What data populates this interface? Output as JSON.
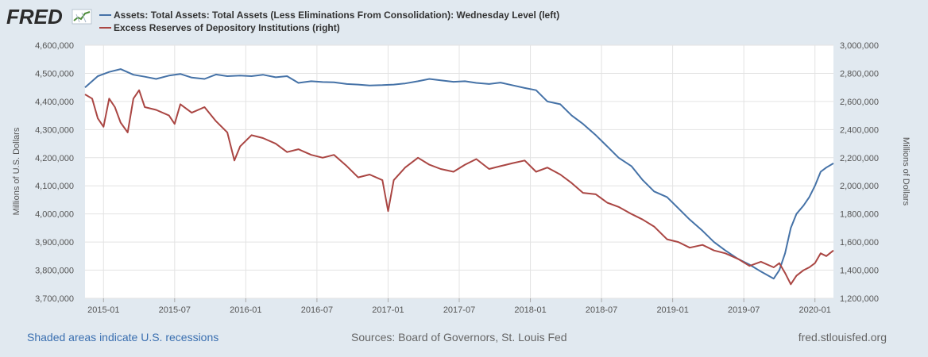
{
  "logo": {
    "text": "FRED"
  },
  "footer": {
    "left": "Shaded areas indicate U.S. recessions",
    "center": "Sources: Board of Governors, St. Louis Fed",
    "right": "fred.stlouisfed.org"
  },
  "chart_data": {
    "type": "line",
    "series": [
      {
        "name": "Assets: Total Assets: Total Assets (Less Eliminations From Consolidation): Wednesday Level (left)",
        "axis": "left",
        "color": "#4572a7",
        "x": [
          2014.87,
          2014.96,
          2015.04,
          2015.12,
          2015.21,
          2015.29,
          2015.37,
          2015.46,
          2015.54,
          2015.62,
          2015.71,
          2015.79,
          2015.87,
          2015.96,
          2016.04,
          2016.12,
          2016.21,
          2016.29,
          2016.37,
          2016.46,
          2016.54,
          2016.62,
          2016.71,
          2016.79,
          2016.87,
          2016.96,
          2017.04,
          2017.12,
          2017.21,
          2017.29,
          2017.37,
          2017.46,
          2017.54,
          2017.62,
          2017.71,
          2017.79,
          2017.87,
          2017.96,
          2018.04,
          2018.12,
          2018.21,
          2018.29,
          2018.37,
          2018.46,
          2018.54,
          2018.62,
          2018.71,
          2018.79,
          2018.87,
          2018.96,
          2019.04,
          2019.12,
          2019.21,
          2019.29,
          2019.37,
          2019.46,
          2019.54,
          2019.62,
          2019.71,
          2019.75,
          2019.79,
          2019.83,
          2019.87,
          2019.92,
          2019.96,
          2020.0,
          2020.04,
          2020.08,
          2020.13
        ],
        "values": [
          4450000,
          4490000,
          4505000,
          4515000,
          4495000,
          4488000,
          4480000,
          4492000,
          4498000,
          4485000,
          4480000,
          4496000,
          4490000,
          4492000,
          4490000,
          4495000,
          4486000,
          4490000,
          4466000,
          4472000,
          4469000,
          4468000,
          4462000,
          4460000,
          4457000,
          4458000,
          4460000,
          4464000,
          4472000,
          4480000,
          4475000,
          4470000,
          4472000,
          4466000,
          4462000,
          4467000,
          4458000,
          4448000,
          4440000,
          4400000,
          4390000,
          4350000,
          4320000,
          4280000,
          4240000,
          4200000,
          4170000,
          4120000,
          4080000,
          4060000,
          4020000,
          3980000,
          3940000,
          3900000,
          3870000,
          3840000,
          3820000,
          3795000,
          3770000,
          3800000,
          3860000,
          3950000,
          4000000,
          4030000,
          4060000,
          4100000,
          4150000,
          4165000,
          4180000
        ]
      },
      {
        "name": "Excess Reserves of Depository Institutions (right)",
        "axis": "right",
        "color": "#aa4643",
        "x": [
          2014.87,
          2014.92,
          2014.96,
          2015.0,
          2015.04,
          2015.08,
          2015.12,
          2015.17,
          2015.21,
          2015.25,
          2015.29,
          2015.37,
          2015.46,
          2015.5,
          2015.54,
          2015.62,
          2015.71,
          2015.79,
          2015.87,
          2015.92,
          2015.96,
          2016.04,
          2016.12,
          2016.21,
          2016.29,
          2016.37,
          2016.46,
          2016.54,
          2016.62,
          2016.71,
          2016.79,
          2016.87,
          2016.96,
          2017.0,
          2017.04,
          2017.12,
          2017.21,
          2017.29,
          2017.37,
          2017.46,
          2017.54,
          2017.62,
          2017.71,
          2017.79,
          2017.87,
          2017.96,
          2018.04,
          2018.12,
          2018.21,
          2018.29,
          2018.37,
          2018.46,
          2018.54,
          2018.62,
          2018.71,
          2018.79,
          2018.87,
          2018.96,
          2019.04,
          2019.12,
          2019.21,
          2019.29,
          2019.37,
          2019.46,
          2019.54,
          2019.62,
          2019.71,
          2019.75,
          2019.79,
          2019.83,
          2019.87,
          2019.92,
          2019.96,
          2020.0,
          2020.04,
          2020.08,
          2020.13
        ],
        "values": [
          2650000,
          2620000,
          2480000,
          2420000,
          2620000,
          2560000,
          2450000,
          2380000,
          2620000,
          2680000,
          2560000,
          2540000,
          2500000,
          2440000,
          2580000,
          2520000,
          2560000,
          2460000,
          2380000,
          2180000,
          2280000,
          2360000,
          2340000,
          2300000,
          2240000,
          2260000,
          2220000,
          2200000,
          2220000,
          2140000,
          2060000,
          2080000,
          2040000,
          1820000,
          2040000,
          2130000,
          2200000,
          2150000,
          2120000,
          2100000,
          2150000,
          2190000,
          2120000,
          2140000,
          2160000,
          2180000,
          2100000,
          2130000,
          2080000,
          2020000,
          1950000,
          1940000,
          1880000,
          1850000,
          1800000,
          1760000,
          1710000,
          1620000,
          1600000,
          1560000,
          1580000,
          1540000,
          1520000,
          1480000,
          1430000,
          1460000,
          1420000,
          1450000,
          1380000,
          1300000,
          1360000,
          1400000,
          1420000,
          1450000,
          1520000,
          1500000,
          1540000
        ]
      }
    ],
    "left_axis": {
      "title": "Millions of U.S. Dollars",
      "ylim": [
        3700000,
        4600000
      ],
      "ticks": [
        3700000,
        3800000,
        3900000,
        4000000,
        4100000,
        4200000,
        4300000,
        4400000,
        4500000,
        4600000
      ],
      "tick_labels": [
        "3,700,000",
        "3,800,000",
        "3,900,000",
        "4,000,000",
        "4,100,000",
        "4,200,000",
        "4,300,000",
        "4,400,000",
        "4,500,000",
        "4,600,000"
      ]
    },
    "right_axis": {
      "title": "Millions of Dollars",
      "ylim": [
        1200000,
        3000000
      ],
      "ticks": [
        1200000,
        1400000,
        1600000,
        1800000,
        2000000,
        2200000,
        2400000,
        2600000,
        2800000,
        3000000
      ],
      "tick_labels": [
        "1,200,000",
        "1,400,000",
        "1,600,000",
        "1,800,000",
        "2,000,000",
        "2,200,000",
        "2,400,000",
        "2,600,000",
        "2,800,000",
        "3,000,000"
      ]
    },
    "x_axis": {
      "xlim": [
        2014.87,
        2020.13
      ],
      "ticks": [
        2015.0,
        2015.5,
        2016.0,
        2016.5,
        2017.0,
        2017.5,
        2018.0,
        2018.5,
        2019.0,
        2019.5,
        2020.0
      ],
      "tick_labels": [
        "2015-01",
        "2015-07",
        "2016-01",
        "2016-07",
        "2017-01",
        "2017-07",
        "2018-01",
        "2018-07",
        "2019-01",
        "2019-07",
        "2020-01"
      ]
    },
    "grid": true,
    "legend": "top-left"
  }
}
